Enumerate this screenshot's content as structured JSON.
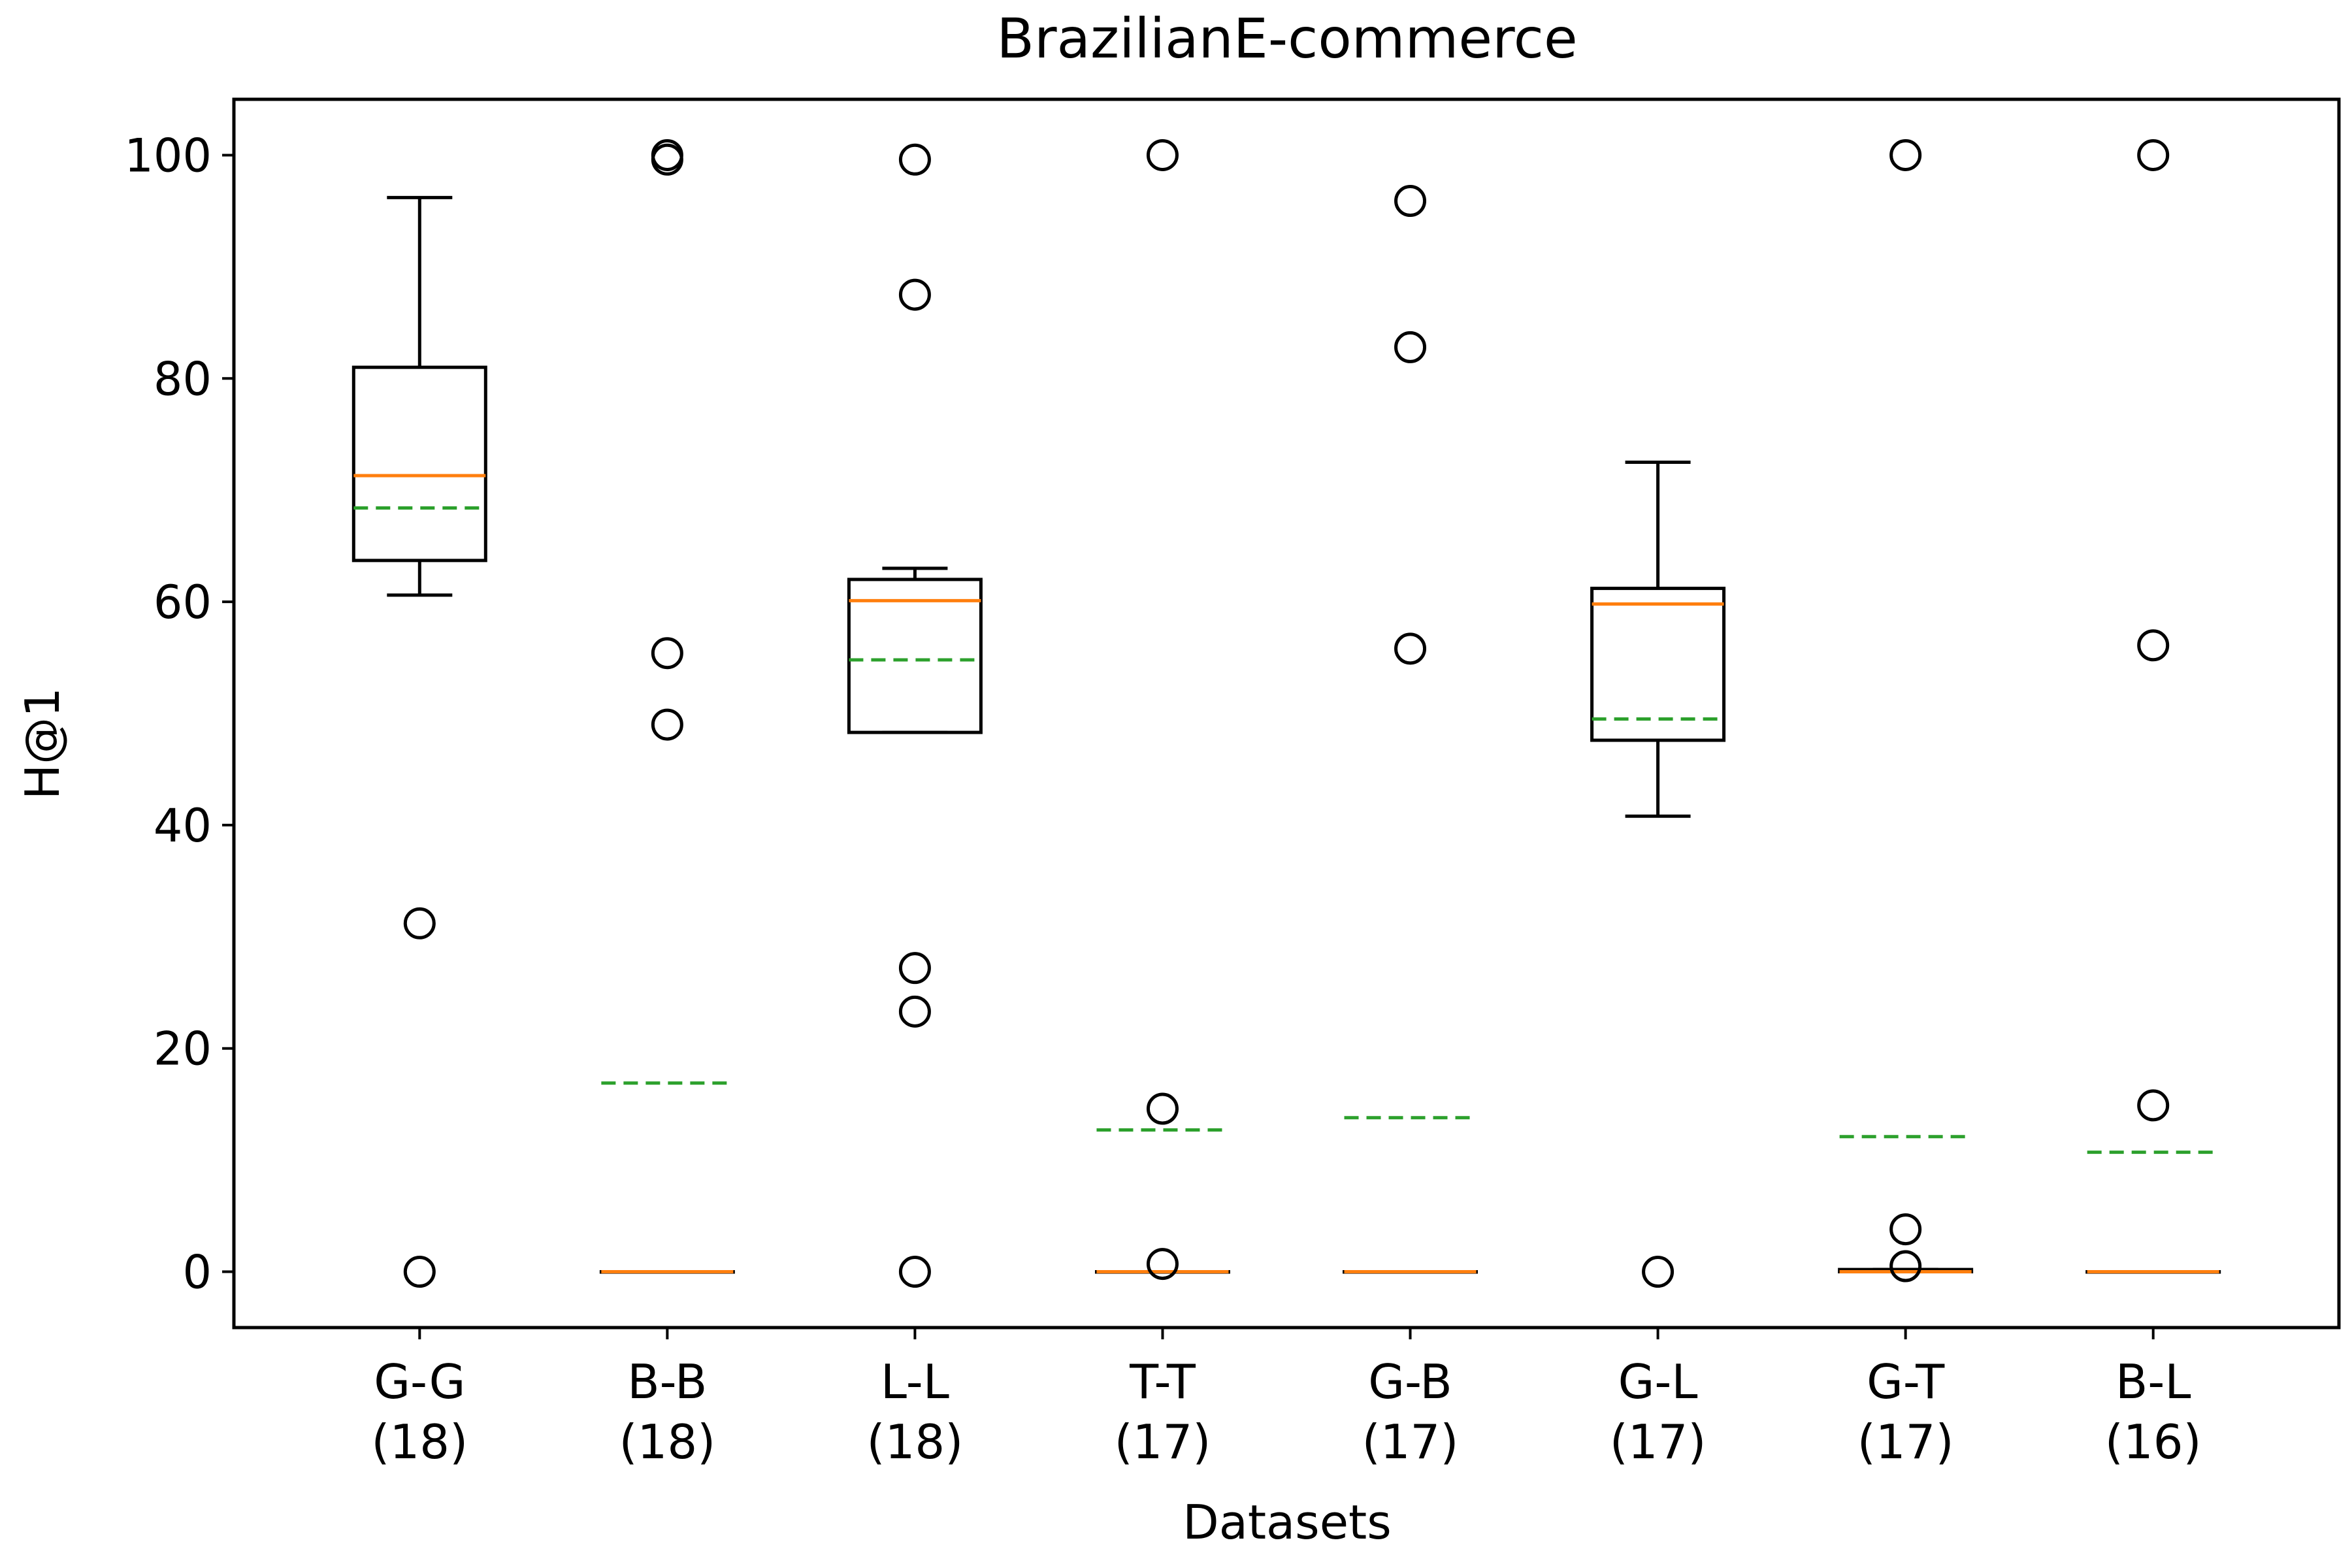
{
  "chart_data": {
    "type": "boxplot",
    "title": "BrazilianE-commerce",
    "xlabel": "Datasets",
    "ylabel": "H@1",
    "ylim": [
      -5,
      105
    ],
    "yticks": [
      0,
      20,
      40,
      60,
      80,
      100
    ],
    "grid": false,
    "legend": "none",
    "colors": {
      "box": "#000000",
      "median": "#ff7f0e",
      "mean": "#2ca02c",
      "flier": "#000000"
    },
    "categories": [
      {
        "name": "G-G",
        "count": "(18)",
        "q1": 63.7,
        "median": 71.3,
        "q3": 81.0,
        "mean": 68.4,
        "whisker_low": 60.6,
        "whisker_high": 96.2,
        "outliers": [
          31.2,
          0.0
        ]
      },
      {
        "name": "B-B",
        "count": "(18)",
        "q1": 0.0,
        "median": 0.0,
        "q3": 0.0,
        "mean": 16.9,
        "whisker_low": 0.0,
        "whisker_high": 0.0,
        "outliers": [
          100.0,
          99.6,
          55.4,
          49.0
        ]
      },
      {
        "name": "L-L",
        "count": "(18)",
        "q1": 48.3,
        "median": 60.1,
        "q3": 62.0,
        "mean": 54.8,
        "whisker_low": 48.3,
        "whisker_high": 63.0,
        "outliers": [
          99.6,
          87.5,
          27.2,
          23.3,
          0.0
        ]
      },
      {
        "name": "T-T",
        "count": "(17)",
        "q1": 0.0,
        "median": 0.0,
        "q3": 0.0,
        "mean": 12.7,
        "whisker_low": 0.0,
        "whisker_high": 0.0,
        "outliers": [
          100.0,
          14.6,
          0.7
        ]
      },
      {
        "name": "G-B",
        "count": "(17)",
        "q1": 0.0,
        "median": 0.0,
        "q3": 0.0,
        "mean": 13.8,
        "whisker_low": 0.0,
        "whisker_high": 0.0,
        "outliers": [
          95.9,
          82.8,
          55.8
        ]
      },
      {
        "name": "G-L",
        "count": "(17)",
        "q1": 47.6,
        "median": 59.8,
        "q3": 61.2,
        "mean": 49.5,
        "whisker_low": 40.8,
        "whisker_high": 72.5,
        "outliers": [
          0.0
        ]
      },
      {
        "name": "G-T",
        "count": "(17)",
        "q1": 0.0,
        "median": 0.0,
        "q3": 0.2,
        "mean": 12.1,
        "whisker_low": 0.0,
        "whisker_high": 0.2,
        "outliers": [
          100.0,
          3.8,
          0.5
        ]
      },
      {
        "name": "B-L",
        "count": "(16)",
        "q1": 0.0,
        "median": 0.0,
        "q3": 0.0,
        "mean": 10.7,
        "whisker_low": 0.0,
        "whisker_high": 0.0,
        "outliers": [
          100.0,
          56.1,
          14.9
        ]
      }
    ]
  }
}
